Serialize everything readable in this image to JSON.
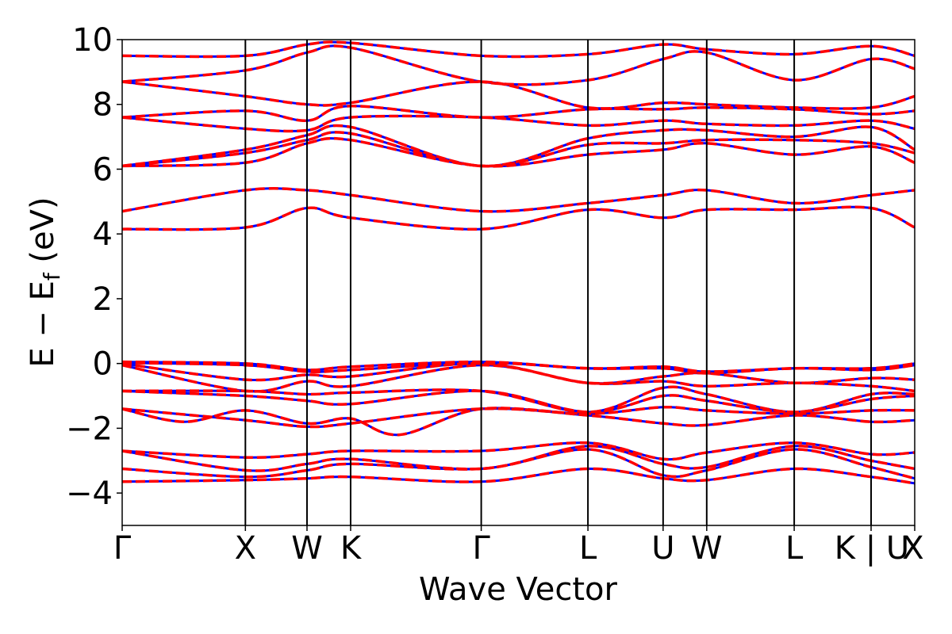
{
  "chart_data": {
    "type": "line",
    "title": "",
    "xlabel": "Wave Vector",
    "ylabel_parts": [
      "E − E",
      "f",
      " (eV)"
    ],
    "ylim": [
      -5,
      10
    ],
    "yticks": [
      -4,
      -2,
      0,
      2,
      4,
      6,
      8,
      10
    ],
    "ytick_labels": [
      "−4",
      "−2",
      "0",
      "2",
      "4",
      "6",
      "8",
      "10"
    ],
    "kpath_positions": [
      0,
      1.0,
      1.5,
      1.854,
      2.914,
      3.78,
      4.39,
      4.744,
      5.454,
      6.078,
      6.432
    ],
    "kpath_labels": [
      "Γ",
      "X",
      "W",
      "K",
      "Γ",
      "L",
      "U",
      "W",
      "L",
      "K | U",
      "X"
    ],
    "xlim": [
      0,
      6.432
    ],
    "grid": false,
    "colors": {
      "series_a": "#0000ff",
      "series_b": "#ff0000",
      "kline": "#000000"
    },
    "series": [
      {
        "color": "#0000ff",
        "linestyle": "solid"
      },
      {
        "color": "#ff0000",
        "linestyle": "dashed"
      }
    ],
    "bands": [
      [
        [
          0,
          -3.65
        ],
        [
          1.0,
          -3.6
        ],
        [
          1.5,
          -3.55
        ],
        [
          1.854,
          -3.5
        ],
        [
          2.914,
          -3.65
        ],
        [
          3.78,
          -3.25
        ],
        [
          4.39,
          -3.55
        ],
        [
          4.744,
          -3.6
        ],
        [
          5.454,
          -3.25
        ],
        [
          6.078,
          -3.5
        ],
        [
          6.432,
          -3.7
        ]
      ],
      [
        [
          0,
          -3.25
        ],
        [
          1.0,
          -3.5
        ],
        [
          1.5,
          -3.3
        ],
        [
          1.854,
          -3.1
        ],
        [
          2.914,
          -3.25
        ],
        [
          3.78,
          -2.65
        ],
        [
          4.39,
          -3.45
        ],
        [
          4.744,
          -3.3
        ],
        [
          5.454,
          -2.65
        ],
        [
          6.078,
          -3.2
        ],
        [
          6.432,
          -3.55
        ]
      ],
      [
        [
          0,
          -2.7
        ],
        [
          1.0,
          -3.3
        ],
        [
          1.5,
          -3.1
        ],
        [
          1.854,
          -2.95
        ],
        [
          2.914,
          -3.25
        ],
        [
          3.78,
          -2.55
        ],
        [
          4.39,
          -3.1
        ],
        [
          4.744,
          -3.2
        ],
        [
          5.454,
          -2.55
        ],
        [
          6.078,
          -3.0
        ],
        [
          6.432,
          -3.25
        ]
      ],
      [
        [
          0,
          -2.7
        ],
        [
          1.0,
          -2.9
        ],
        [
          1.5,
          -2.8
        ],
        [
          1.854,
          -2.7
        ],
        [
          2.914,
          -2.7
        ],
        [
          3.78,
          -2.45
        ],
        [
          4.39,
          -2.95
        ],
        [
          4.744,
          -2.75
        ],
        [
          5.454,
          -2.45
        ],
        [
          6.078,
          -2.8
        ],
        [
          6.432,
          -2.75
        ]
      ],
      [
        [
          0,
          -1.4
        ],
        [
          1.0,
          -1.75
        ],
        [
          1.5,
          -1.95
        ],
        [
          1.854,
          -1.85
        ],
        [
          2.914,
          -1.4
        ],
        [
          3.78,
          -1.6
        ],
        [
          4.39,
          -1.85
        ],
        [
          4.744,
          -1.9
        ],
        [
          5.454,
          -1.6
        ],
        [
          6.078,
          -1.8
        ],
        [
          6.432,
          -1.75
        ]
      ],
      [
        [
          0,
          -1.4
        ],
        [
          0.5,
          -1.8
        ],
        [
          1.0,
          -1.45
        ],
        [
          1.5,
          -1.85
        ],
        [
          1.854,
          -1.7
        ],
        [
          2.25,
          -2.2
        ],
        [
          2.914,
          -1.4
        ],
        [
          3.78,
          -1.55
        ],
        [
          4.39,
          -1.35
        ],
        [
          4.744,
          -1.45
        ],
        [
          5.454,
          -1.55
        ],
        [
          6.078,
          -1.45
        ],
        [
          6.432,
          -1.45
        ]
      ],
      [
        [
          0,
          -0.85
        ],
        [
          1.0,
          -1.0
        ],
        [
          1.5,
          -1.15
        ],
        [
          1.854,
          -1.25
        ],
        [
          2.914,
          -0.85
        ],
        [
          3.78,
          -1.5
        ],
        [
          4.39,
          -1.0
        ],
        [
          4.744,
          -1.15
        ],
        [
          5.454,
          -1.5
        ],
        [
          6.078,
          -1.1
        ],
        [
          6.432,
          -1.0
        ]
      ],
      [
        [
          0,
          -0.85
        ],
        [
          1.0,
          -0.85
        ],
        [
          1.5,
          -0.95
        ],
        [
          1.854,
          -0.9
        ],
        [
          2.914,
          -0.85
        ],
        [
          3.78,
          -1.5
        ],
        [
          4.39,
          -0.75
        ],
        [
          4.744,
          -0.95
        ],
        [
          5.454,
          -1.5
        ],
        [
          6.078,
          -0.95
        ],
        [
          6.432,
          -0.95
        ]
      ],
      [
        [
          0,
          -0.05
        ],
        [
          1.0,
          -0.85
        ],
        [
          1.5,
          -0.55
        ],
        [
          1.854,
          -0.7
        ],
        [
          2.914,
          -0.05
        ],
        [
          3.78,
          -0.6
        ],
        [
          4.39,
          -0.55
        ],
        [
          4.744,
          -0.7
        ],
        [
          5.454,
          -0.6
        ],
        [
          6.078,
          -0.7
        ],
        [
          6.432,
          -0.85
        ]
      ],
      [
        [
          0,
          0.0
        ],
        [
          1.0,
          -0.5
        ],
        [
          1.5,
          -0.35
        ],
        [
          1.854,
          -0.4
        ],
        [
          2.914,
          0.0
        ],
        [
          3.78,
          -0.6
        ],
        [
          4.39,
          -0.4
        ],
        [
          4.744,
          -0.3
        ],
        [
          5.454,
          -0.6
        ],
        [
          6.078,
          -0.45
        ],
        [
          6.432,
          -0.5
        ]
      ],
      [
        [
          0,
          0.02
        ],
        [
          1.0,
          -0.05
        ],
        [
          1.5,
          -0.25
        ],
        [
          1.854,
          -0.2
        ],
        [
          2.914,
          0.02
        ],
        [
          3.78,
          -0.15
        ],
        [
          4.39,
          -0.15
        ],
        [
          4.744,
          -0.3
        ],
        [
          5.454,
          -0.15
        ],
        [
          6.078,
          -0.2
        ],
        [
          6.432,
          -0.05
        ]
      ],
      [
        [
          0,
          0.05
        ],
        [
          1.0,
          0.0
        ],
        [
          1.5,
          -0.2
        ],
        [
          1.854,
          -0.1
        ],
        [
          2.914,
          0.05
        ],
        [
          3.78,
          -0.15
        ],
        [
          4.39,
          -0.1
        ],
        [
          4.744,
          -0.25
        ],
        [
          5.454,
          -0.15
        ],
        [
          6.078,
          -0.15
        ],
        [
          6.432,
          0.0
        ]
      ],
      [
        [
          0,
          4.15
        ],
        [
          1.0,
          4.2
        ],
        [
          1.5,
          4.8
        ],
        [
          1.854,
          4.5
        ],
        [
          2.914,
          4.15
        ],
        [
          3.78,
          4.75
        ],
        [
          4.39,
          4.5
        ],
        [
          4.744,
          4.75
        ],
        [
          5.454,
          4.75
        ],
        [
          6.078,
          4.8
        ],
        [
          6.432,
          4.2
        ]
      ],
      [
        [
          0,
          4.7
        ],
        [
          1.0,
          5.35
        ],
        [
          1.5,
          5.35
        ],
        [
          1.854,
          5.2
        ],
        [
          2.914,
          4.7
        ],
        [
          3.78,
          4.95
        ],
        [
          4.39,
          5.2
        ],
        [
          4.744,
          5.35
        ],
        [
          5.454,
          4.95
        ],
        [
          6.078,
          5.2
        ],
        [
          6.432,
          5.35
        ]
      ],
      [
        [
          0,
          6.1
        ],
        [
          1.0,
          6.2
        ],
        [
          1.5,
          6.8
        ],
        [
          1.854,
          6.9
        ],
        [
          2.914,
          6.1
        ],
        [
          3.78,
          6.45
        ],
        [
          4.39,
          6.6
        ],
        [
          4.744,
          6.8
        ],
        [
          5.454,
          6.45
        ],
        [
          6.078,
          6.7
        ],
        [
          6.432,
          6.2
        ]
      ],
      [
        [
          0,
          6.1
        ],
        [
          1.0,
          6.5
        ],
        [
          1.5,
          6.9
        ],
        [
          1.854,
          7.1
        ],
        [
          2.914,
          6.1
        ],
        [
          3.78,
          6.75
        ],
        [
          4.39,
          6.8
        ],
        [
          4.744,
          6.9
        ],
        [
          5.454,
          6.9
        ],
        [
          6.078,
          6.8
        ],
        [
          6.432,
          6.5
        ]
      ],
      [
        [
          0,
          6.1
        ],
        [
          1.0,
          6.6
        ],
        [
          1.5,
          7.05
        ],
        [
          1.854,
          7.3
        ],
        [
          2.914,
          6.1
        ],
        [
          3.78,
          6.95
        ],
        [
          4.39,
          7.2
        ],
        [
          4.744,
          7.2
        ],
        [
          5.454,
          7.0
        ],
        [
          6.078,
          7.3
        ],
        [
          6.432,
          6.6
        ]
      ],
      [
        [
          0,
          7.6
        ],
        [
          1.0,
          7.25
        ],
        [
          1.5,
          7.2
        ],
        [
          1.854,
          7.6
        ],
        [
          2.914,
          7.6
        ],
        [
          3.78,
          7.35
        ],
        [
          4.39,
          7.5
        ],
        [
          4.744,
          7.4
        ],
        [
          5.454,
          7.35
        ],
        [
          6.078,
          7.5
        ],
        [
          6.432,
          7.25
        ]
      ],
      [
        [
          0,
          7.6
        ],
        [
          1.0,
          7.8
        ],
        [
          1.5,
          7.5
        ],
        [
          1.854,
          7.95
        ],
        [
          2.914,
          7.6
        ],
        [
          3.78,
          7.85
        ],
        [
          4.39,
          7.85
        ],
        [
          4.744,
          7.9
        ],
        [
          5.454,
          7.85
        ],
        [
          6.078,
          7.7
        ],
        [
          6.432,
          7.8
        ]
      ],
      [
        [
          0,
          8.7
        ],
        [
          1.0,
          8.25
        ],
        [
          1.5,
          8.0
        ],
        [
          1.854,
          8.05
        ],
        [
          2.914,
          8.7
        ],
        [
          3.78,
          7.9
        ],
        [
          4.39,
          8.05
        ],
        [
          4.744,
          8.0
        ],
        [
          5.454,
          7.9
        ],
        [
          6.078,
          7.9
        ],
        [
          6.432,
          8.25
        ]
      ],
      [
        [
          0,
          8.7
        ],
        [
          1.0,
          9.05
        ],
        [
          1.5,
          9.6
        ],
        [
          1.854,
          9.75
        ],
        [
          2.914,
          8.7
        ],
        [
          3.78,
          8.75
        ],
        [
          4.39,
          9.4
        ],
        [
          4.744,
          9.6
        ],
        [
          5.454,
          8.75
        ],
        [
          6.078,
          9.4
        ],
        [
          6.432,
          9.1
        ]
      ],
      [
        [
          0,
          9.5
        ],
        [
          1.0,
          9.5
        ],
        [
          1.5,
          9.85
        ],
        [
          1.854,
          9.9
        ],
        [
          2.914,
          9.5
        ],
        [
          3.78,
          9.55
        ],
        [
          4.39,
          9.85
        ],
        [
          4.744,
          9.7
        ],
        [
          5.454,
          9.55
        ],
        [
          6.078,
          9.8
        ],
        [
          6.432,
          9.5
        ]
      ]
    ]
  }
}
